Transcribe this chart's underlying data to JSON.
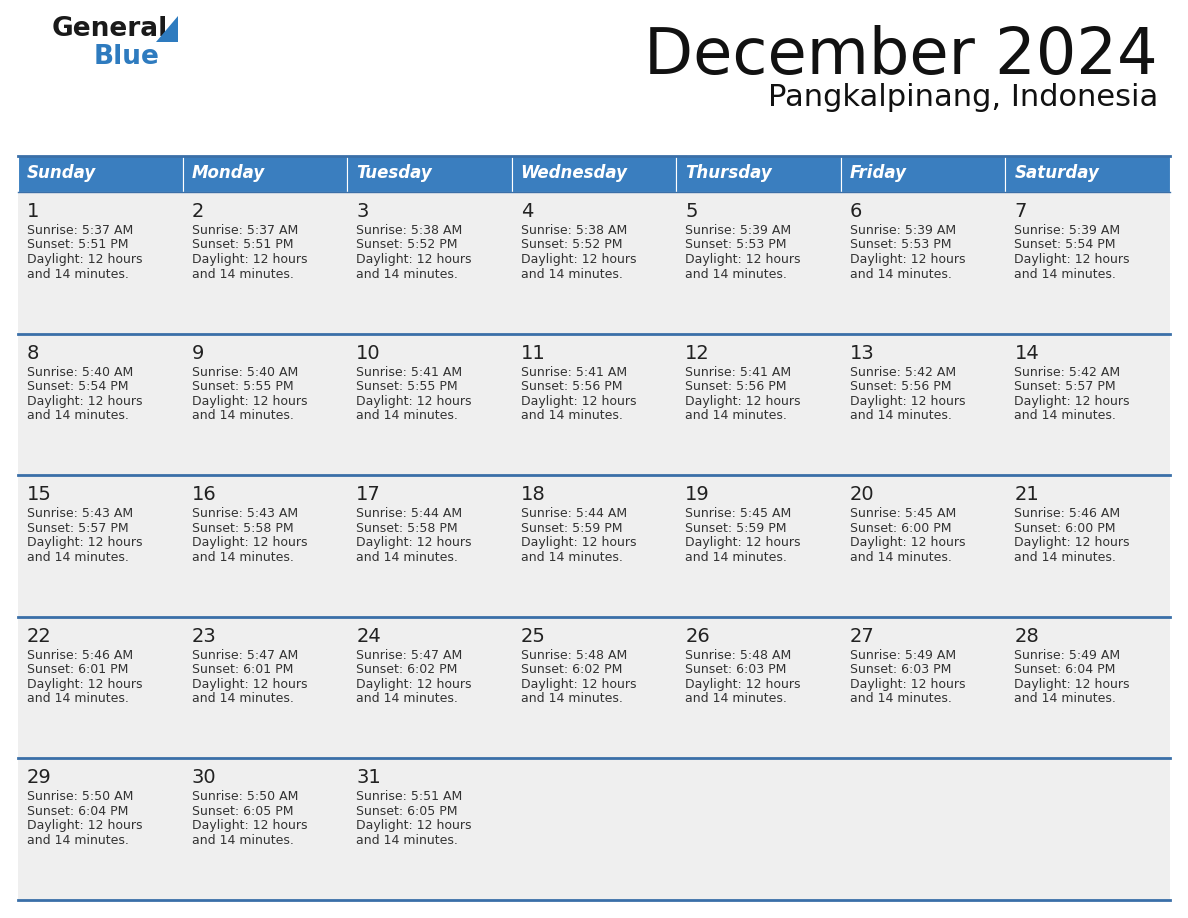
{
  "title": "December 2024",
  "subtitle": "Pangkalpinang, Indonesia",
  "header_color": "#3A7EBF",
  "header_text_color": "#FFFFFF",
  "cell_bg_color": "#EFEFEF",
  "border_color": "#3A6FA8",
  "day_names": [
    "Sunday",
    "Monday",
    "Tuesday",
    "Wednesday",
    "Thursday",
    "Friday",
    "Saturday"
  ],
  "days": [
    {
      "day": 1,
      "col": 0,
      "row": 0,
      "sunrise": "5:37 AM",
      "sunset": "5:51 PM"
    },
    {
      "day": 2,
      "col": 1,
      "row": 0,
      "sunrise": "5:37 AM",
      "sunset": "5:51 PM"
    },
    {
      "day": 3,
      "col": 2,
      "row": 0,
      "sunrise": "5:38 AM",
      "sunset": "5:52 PM"
    },
    {
      "day": 4,
      "col": 3,
      "row": 0,
      "sunrise": "5:38 AM",
      "sunset": "5:52 PM"
    },
    {
      "day": 5,
      "col": 4,
      "row": 0,
      "sunrise": "5:39 AM",
      "sunset": "5:53 PM"
    },
    {
      "day": 6,
      "col": 5,
      "row": 0,
      "sunrise": "5:39 AM",
      "sunset": "5:53 PM"
    },
    {
      "day": 7,
      "col": 6,
      "row": 0,
      "sunrise": "5:39 AM",
      "sunset": "5:54 PM"
    },
    {
      "day": 8,
      "col": 0,
      "row": 1,
      "sunrise": "5:40 AM",
      "sunset": "5:54 PM"
    },
    {
      "day": 9,
      "col": 1,
      "row": 1,
      "sunrise": "5:40 AM",
      "sunset": "5:55 PM"
    },
    {
      "day": 10,
      "col": 2,
      "row": 1,
      "sunrise": "5:41 AM",
      "sunset": "5:55 PM"
    },
    {
      "day": 11,
      "col": 3,
      "row": 1,
      "sunrise": "5:41 AM",
      "sunset": "5:56 PM"
    },
    {
      "day": 12,
      "col": 4,
      "row": 1,
      "sunrise": "5:41 AM",
      "sunset": "5:56 PM"
    },
    {
      "day": 13,
      "col": 5,
      "row": 1,
      "sunrise": "5:42 AM",
      "sunset": "5:56 PM"
    },
    {
      "day": 14,
      "col": 6,
      "row": 1,
      "sunrise": "5:42 AM",
      "sunset": "5:57 PM"
    },
    {
      "day": 15,
      "col": 0,
      "row": 2,
      "sunrise": "5:43 AM",
      "sunset": "5:57 PM"
    },
    {
      "day": 16,
      "col": 1,
      "row": 2,
      "sunrise": "5:43 AM",
      "sunset": "5:58 PM"
    },
    {
      "day": 17,
      "col": 2,
      "row": 2,
      "sunrise": "5:44 AM",
      "sunset": "5:58 PM"
    },
    {
      "day": 18,
      "col": 3,
      "row": 2,
      "sunrise": "5:44 AM",
      "sunset": "5:59 PM"
    },
    {
      "day": 19,
      "col": 4,
      "row": 2,
      "sunrise": "5:45 AM",
      "sunset": "5:59 PM"
    },
    {
      "day": 20,
      "col": 5,
      "row": 2,
      "sunrise": "5:45 AM",
      "sunset": "6:00 PM"
    },
    {
      "day": 21,
      "col": 6,
      "row": 2,
      "sunrise": "5:46 AM",
      "sunset": "6:00 PM"
    },
    {
      "day": 22,
      "col": 0,
      "row": 3,
      "sunrise": "5:46 AM",
      "sunset": "6:01 PM"
    },
    {
      "day": 23,
      "col": 1,
      "row": 3,
      "sunrise": "5:47 AM",
      "sunset": "6:01 PM"
    },
    {
      "day": 24,
      "col": 2,
      "row": 3,
      "sunrise": "5:47 AM",
      "sunset": "6:02 PM"
    },
    {
      "day": 25,
      "col": 3,
      "row": 3,
      "sunrise": "5:48 AM",
      "sunset": "6:02 PM"
    },
    {
      "day": 26,
      "col": 4,
      "row": 3,
      "sunrise": "5:48 AM",
      "sunset": "6:03 PM"
    },
    {
      "day": 27,
      "col": 5,
      "row": 3,
      "sunrise": "5:49 AM",
      "sunset": "6:03 PM"
    },
    {
      "day": 28,
      "col": 6,
      "row": 3,
      "sunrise": "5:49 AM",
      "sunset": "6:04 PM"
    },
    {
      "day": 29,
      "col": 0,
      "row": 4,
      "sunrise": "5:50 AM",
      "sunset": "6:04 PM"
    },
    {
      "day": 30,
      "col": 1,
      "row": 4,
      "sunrise": "5:50 AM",
      "sunset": "6:05 PM"
    },
    {
      "day": 31,
      "col": 2,
      "row": 4,
      "sunrise": "5:51 AM",
      "sunset": "6:05 PM"
    }
  ],
  "daylight": "12 hours",
  "daylight2": "and 14 minutes.",
  "logo_text_general": "General",
  "logo_text_blue": "Blue",
  "logo_triangle_color": "#2E7BBF",
  "logo_general_color": "#1a1a1a",
  "logo_blue_color": "#2E7BBF",
  "title_fontsize": 46,
  "subtitle_fontsize": 22,
  "header_fontsize": 12,
  "day_num_fontsize": 14,
  "cell_text_fontsize": 9
}
